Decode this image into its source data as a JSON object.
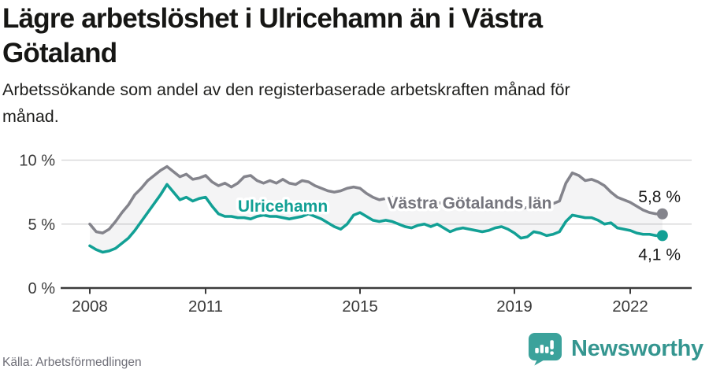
{
  "header": {
    "title_lines": [
      "Lägre arbetslöshet i Ulricehamn än i Västra",
      "Götaland"
    ],
    "subtitle_lines": [
      "Arbetssökande som andel av den registerbaserade arbetskraften månad för",
      "månad."
    ]
  },
  "chart_data": {
    "type": "line",
    "title": "Lägre arbetslöshet i Ulricehamn än i Västra Götaland",
    "subtitle": "Arbetssökande som andel av den registerbaserade arbetskraften månad för månad.",
    "unit": "%",
    "x_start_year": 2008,
    "x_points_per_year": 6,
    "x_end_year_approx": 2022.83,
    "ylim": [
      0,
      10.8
    ],
    "grid": "horizontal-only",
    "y_ticks": [
      {
        "value": 0,
        "label": "0 %"
      },
      {
        "value": 5,
        "label": "5 %"
      },
      {
        "value": 10,
        "label": "10 %"
      }
    ],
    "x_ticks": [
      {
        "value": 2008,
        "label": "2008"
      },
      {
        "value": 2011,
        "label": "2011"
      },
      {
        "value": 2015,
        "label": "2015"
      },
      {
        "value": 2019,
        "label": "2019"
      },
      {
        "value": 2022,
        "label": "2022"
      }
    ],
    "series": [
      {
        "id": "vastra-gotalands-lan",
        "name": "Västra Götalands län",
        "color": "#84848C",
        "label_color": "#75757D",
        "end_label": "5,8 %",
        "end_value": 5.8,
        "values": [
          5.0,
          4.4,
          4.3,
          4.6,
          5.2,
          5.9,
          6.5,
          7.3,
          7.8,
          8.4,
          8.8,
          9.2,
          9.5,
          9.1,
          8.7,
          8.9,
          8.5,
          8.6,
          8.8,
          8.3,
          8.0,
          8.2,
          7.9,
          8.2,
          8.7,
          8.8,
          8.4,
          8.2,
          8.4,
          8.2,
          8.5,
          8.2,
          8.1,
          8.4,
          8.3,
          8.0,
          7.8,
          7.6,
          7.5,
          7.6,
          7.8,
          7.9,
          7.8,
          7.4,
          7.1,
          6.9,
          7.0,
          7.1,
          7.0,
          6.9,
          6.8,
          6.7,
          6.8,
          6.8,
          6.7,
          6.6,
          6.5,
          6.5,
          6.6,
          6.5,
          6.4,
          6.3,
          6.2,
          6.3,
          6.4,
          6.3,
          6.2,
          6.2,
          6.3,
          6.4,
          6.5,
          6.6,
          6.6,
          6.8,
          8.2,
          9.0,
          8.8,
          8.4,
          8.5,
          8.3,
          8.0,
          7.5,
          7.1,
          6.9,
          6.7,
          6.4,
          6.1,
          5.9,
          5.8,
          5.8
        ]
      },
      {
        "id": "ulricehamn",
        "name": "Ulricehamn",
        "color": "#12A095",
        "label_color": "#12A095",
        "end_label": "4,1 %",
        "end_value": 4.1,
        "values": [
          3.3,
          3.0,
          2.8,
          2.9,
          3.1,
          3.5,
          3.9,
          4.5,
          5.2,
          5.9,
          6.6,
          7.3,
          8.1,
          7.5,
          6.9,
          7.1,
          6.8,
          7.0,
          7.1,
          6.4,
          5.8,
          5.6,
          5.6,
          5.5,
          5.5,
          5.4,
          5.6,
          5.7,
          5.6,
          5.6,
          5.5,
          5.4,
          5.5,
          5.6,
          5.8,
          5.6,
          5.4,
          5.1,
          4.8,
          4.6,
          5.0,
          5.7,
          5.9,
          5.6,
          5.3,
          5.2,
          5.3,
          5.2,
          5.0,
          4.8,
          4.7,
          4.9,
          5.0,
          4.8,
          5.0,
          4.7,
          4.4,
          4.6,
          4.7,
          4.6,
          4.5,
          4.4,
          4.5,
          4.7,
          4.8,
          4.6,
          4.3,
          3.9,
          4.0,
          4.4,
          4.3,
          4.1,
          4.2,
          4.4,
          5.2,
          5.7,
          5.6,
          5.5,
          5.5,
          5.3,
          5.0,
          5.1,
          4.7,
          4.6,
          4.5,
          4.3,
          4.2,
          4.2,
          4.1,
          4.1
        ]
      }
    ],
    "fill_between_series": true,
    "legend_position": "inline-labels-on-lines"
  },
  "colors": {
    "ulricehamn_teal": "#12A095",
    "vastra_gray": "#84848C",
    "axis": "#3C3C3C",
    "grid": "#D9D9DA",
    "fill_between": "rgba(132,132,140,0.09)",
    "end_label_text": "#1A1A1A",
    "brand_bubble": "#3BA29B",
    "brand_text": "#359690"
  },
  "footer": {
    "source": "Källa: Arbetsförmedlingen",
    "brand": "Newsworthy"
  }
}
